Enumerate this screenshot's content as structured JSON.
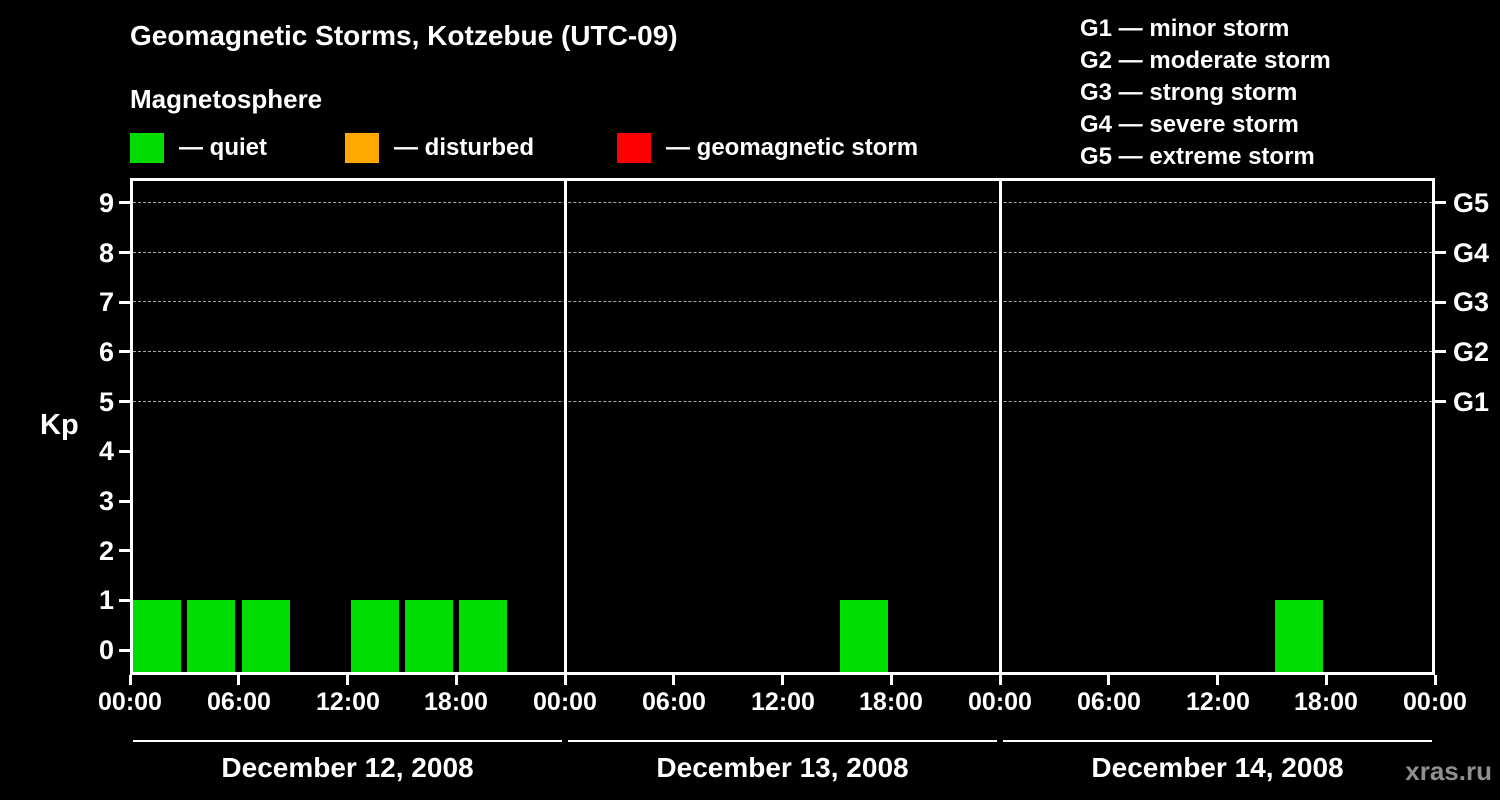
{
  "title": "Geomagnetic Storms, Kotzebue (UTC-09)",
  "subtitle": "Magnetosphere",
  "legend": {
    "items": [
      {
        "name": "quiet",
        "label": "— quiet",
        "color": "#00dd00"
      },
      {
        "name": "disturbed",
        "label": "— disturbed",
        "color": "#ffa800"
      },
      {
        "name": "geomagnetic-storm",
        "label": "— geomagnetic storm",
        "color": "#ff0000"
      }
    ]
  },
  "g_legend": {
    "items": [
      "G1 — minor storm",
      "G2 — moderate storm",
      "G3 — strong storm",
      "G4 — severe storm",
      "G5 — extreme storm"
    ]
  },
  "watermark": "xras.ru",
  "chart_data": {
    "type": "bar",
    "title": "Geomagnetic Storms, Kotzebue (UTC-09)",
    "ylabel": "Kp",
    "ylim": [
      -0.5,
      9.5
    ],
    "yticks": [
      0,
      1,
      2,
      3,
      4,
      5,
      6,
      7,
      8,
      9
    ],
    "grid_levels": [
      5,
      6,
      7,
      8,
      9
    ],
    "right_axis": [
      {
        "level": 9,
        "label": "G5"
      },
      {
        "level": 8,
        "label": "G4"
      },
      {
        "level": 7,
        "label": "G3"
      },
      {
        "level": 6,
        "label": "G2"
      },
      {
        "level": 5,
        "label": "G1"
      }
    ],
    "x_tick_labels": [
      "00:00",
      "06:00",
      "12:00",
      "18:00"
    ],
    "x_end_label": "00:00",
    "interval_hours": 3,
    "kp_color_thresholds": {
      "quiet_max": 3,
      "disturbed_max": 4
    },
    "days": [
      {
        "date": "December 12, 2008",
        "kp": [
          1,
          1,
          1,
          0,
          1,
          1,
          1,
          0
        ]
      },
      {
        "date": "December 13, 2008",
        "kp": [
          0,
          0,
          0,
          0,
          0,
          1,
          0,
          0
        ]
      },
      {
        "date": "December 14, 2008",
        "kp": [
          0,
          0,
          0,
          0,
          0,
          1,
          0,
          0
        ]
      }
    ],
    "grid_on": true,
    "legend_position": "top",
    "colors": {
      "background": "#000000",
      "axis": "#ffffff",
      "grid": "#bbbbbb",
      "text": "#ffffff",
      "watermark": "#909090"
    }
  }
}
